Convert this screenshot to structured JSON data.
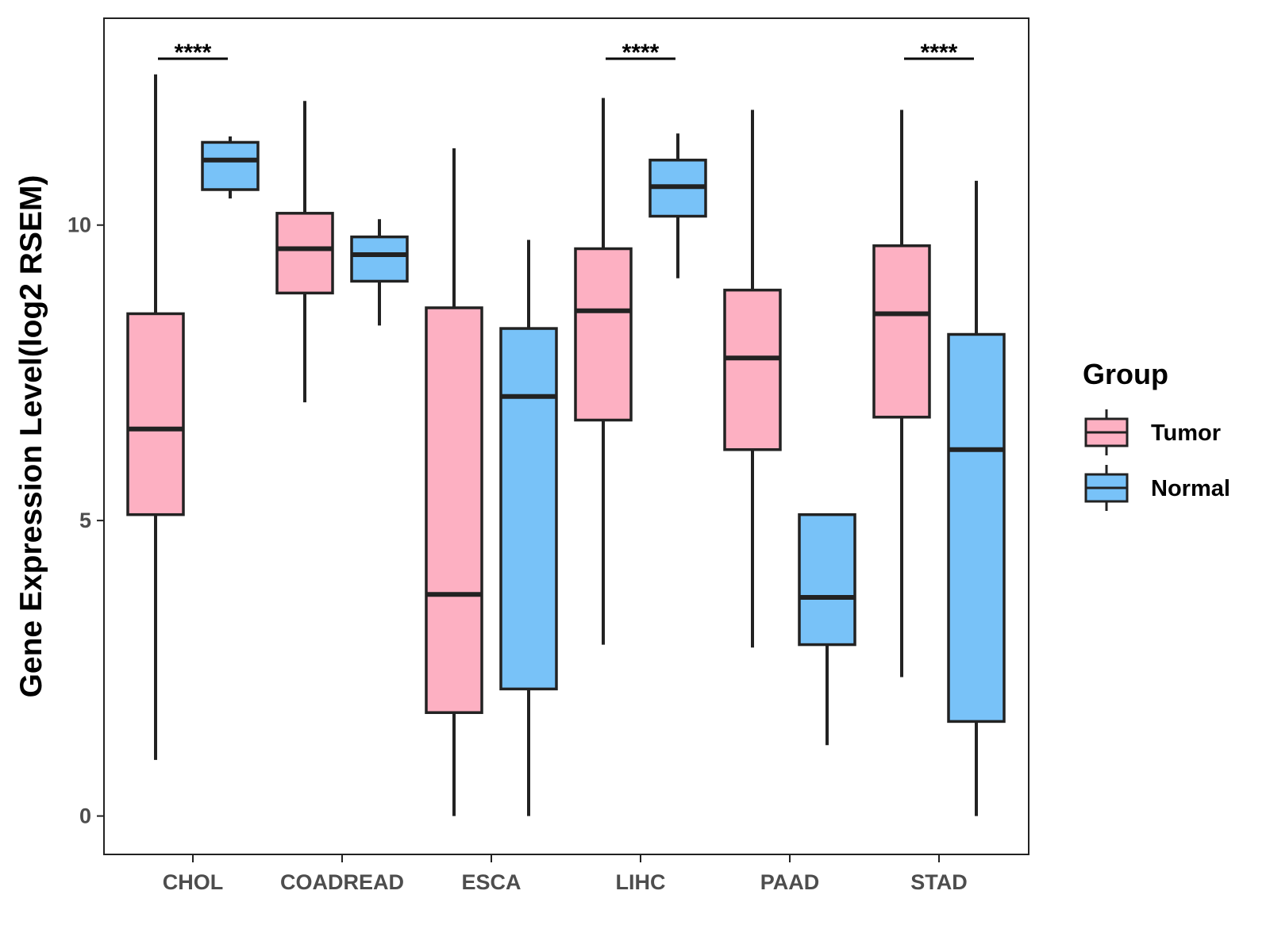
{
  "chart_data": {
    "type": "boxplot",
    "title": "",
    "xlabel": "",
    "ylabel": "Gene Expression Level(log2 RSEM)",
    "ylim": [
      -0.65,
      13.5
    ],
    "yticks": [
      0,
      5,
      10
    ],
    "categories": [
      "CHOL",
      "COADREAD",
      "ESCA",
      "LIHC",
      "PAAD",
      "STAD"
    ],
    "legend": {
      "title": "Group",
      "position": "right",
      "entries": [
        "Tumor",
        "Normal"
      ]
    },
    "series": [
      {
        "name": "Tumor",
        "color": "#FDB0C2",
        "boxes": [
          {
            "min": 0.95,
            "q1": 5.1,
            "median": 6.55,
            "q3": 8.5,
            "max": 12.55
          },
          {
            "min": 7.0,
            "q1": 8.85,
            "median": 9.6,
            "q3": 10.2,
            "max": 12.1
          },
          {
            "min": 0.0,
            "q1": 1.75,
            "median": 3.75,
            "q3": 8.6,
            "max": 11.3
          },
          {
            "min": 2.9,
            "q1": 6.7,
            "median": 8.55,
            "q3": 9.6,
            "max": 12.15
          },
          {
            "min": 2.85,
            "q1": 6.2,
            "median": 7.75,
            "q3": 8.9,
            "max": 11.95
          },
          {
            "min": 2.35,
            "q1": 6.75,
            "median": 8.5,
            "q3": 9.65,
            "max": 11.95
          }
        ]
      },
      {
        "name": "Normal",
        "color": "#78C2F8",
        "boxes": [
          {
            "min": 10.45,
            "q1": 10.6,
            "median": 11.1,
            "q3": 11.4,
            "max": 11.5
          },
          {
            "min": 8.3,
            "q1": 9.05,
            "median": 9.5,
            "q3": 9.8,
            "max": 10.1
          },
          {
            "min": 0.0,
            "q1": 2.15,
            "median": 7.1,
            "q3": 8.25,
            "max": 9.75
          },
          {
            "min": 9.1,
            "q1": 10.15,
            "median": 10.65,
            "q3": 11.1,
            "max": 11.55
          },
          {
            "min": 1.2,
            "q1": 2.9,
            "median": 3.7,
            "q3": 5.1,
            "max": 5.1
          },
          {
            "min": 0.0,
            "q1": 1.6,
            "median": 6.2,
            "q3": 8.15,
            "max": 10.75
          }
        ]
      }
    ],
    "significance": [
      {
        "category": "CHOL",
        "label": "****"
      },
      {
        "category": "LIHC",
        "label": "****"
      },
      {
        "category": "STAD",
        "label": "****"
      }
    ]
  }
}
